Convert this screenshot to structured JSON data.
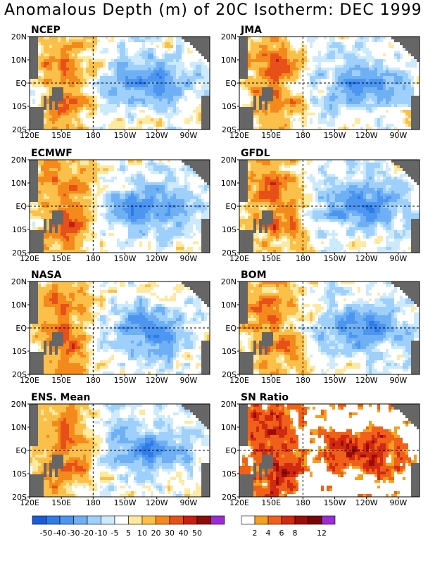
{
  "title": "Anomalous Depth (m) of 20C Isotherm: DEC 1999",
  "chart_data": [
    {
      "type": "heatmap",
      "title": "NCEP",
      "field": "anomaly"
    },
    {
      "type": "heatmap",
      "title": "JMA",
      "field": "anomaly"
    },
    {
      "type": "heatmap",
      "title": "ECMWF",
      "field": "anomaly"
    },
    {
      "type": "heatmap",
      "title": "GFDL",
      "field": "anomaly"
    },
    {
      "type": "heatmap",
      "title": "NASA",
      "field": "anomaly"
    },
    {
      "type": "heatmap",
      "title": "BOM",
      "field": "anomaly"
    },
    {
      "type": "heatmap",
      "title": "ENS. Mean",
      "field": "anomaly"
    },
    {
      "type": "heatmap",
      "title": "SN Ratio",
      "field": "ratio"
    }
  ],
  "axes": {
    "x_ticks": [
      "120E",
      "150E",
      "180",
      "150W",
      "120W",
      "90W"
    ],
    "x_values": [
      120,
      150,
      180,
      210,
      240,
      270
    ],
    "y_ticks": [
      "20N",
      "10N",
      "EQ",
      "10S",
      "20S"
    ],
    "y_values": [
      20,
      10,
      0,
      -10,
      -20
    ],
    "xlim": [
      120,
      290
    ],
    "ylim": [
      -20,
      20
    ]
  },
  "legend_anomaly": {
    "labels": [
      "-50",
      "-40",
      "-30",
      "-20",
      "-10",
      "-5",
      "5",
      "10",
      "20",
      "30",
      "40",
      "50"
    ],
    "colors": [
      "#1a5cd6",
      "#2f7ce6",
      "#4c95f0",
      "#6fb0f5",
      "#9fd0fb",
      "#cdeafd",
      "#ffffff",
      "#fde9a0",
      "#fbc04a",
      "#f58a1c",
      "#e8501a",
      "#c81e10",
      "#8e0b06",
      "#9b2cd6"
    ]
  },
  "legend_ratio": {
    "labels": [
      "2",
      "4",
      "6",
      "8",
      "12"
    ],
    "colors": [
      "#ffffff",
      "#f5a020",
      "#f06018",
      "#d02a12",
      "#9e0c08",
      "#7a0606",
      "#9b2cd6"
    ]
  },
  "land_color": "#666666"
}
